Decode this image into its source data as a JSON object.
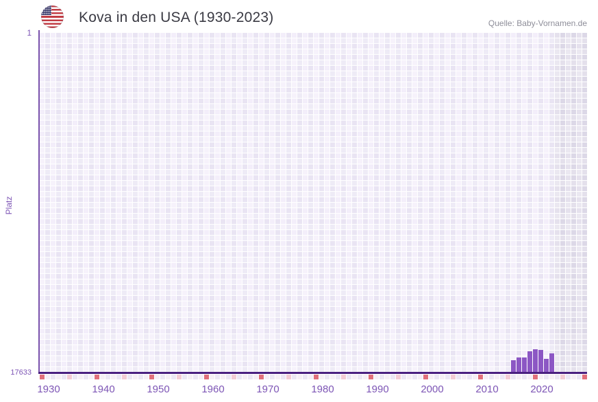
{
  "header": {
    "title": "Kova in den USA (1930-2023)",
    "source": "Quelle: Baby-Vornamen.de"
  },
  "chart_data": {
    "type": "bar",
    "name": "Kova",
    "title": "Kova in den USA (1930-2023)",
    "xlabel": "",
    "ylabel": "Platz",
    "y_axis": {
      "top_tick_label": "1",
      "bottom_tick_label": "17633",
      "min_rank": 1,
      "max_rank": 17633,
      "inverted": true
    },
    "x_axis": {
      "grid_start_year": 1929,
      "grid_end_year": 2028,
      "tick_years": [
        1930,
        1940,
        1950,
        1960,
        1970,
        1980,
        1990,
        2000,
        2010,
        2020
      ]
    },
    "bars": [
      {
        "year": 2015,
        "rank": 16990
      },
      {
        "year": 2016,
        "rank": 16850
      },
      {
        "year": 2017,
        "rank": 16850
      },
      {
        "year": 2018,
        "rank": 16530
      },
      {
        "year": 2019,
        "rank": 16430
      },
      {
        "year": 2020,
        "rank": 16460
      },
      {
        "year": 2021,
        "rank": 16920
      },
      {
        "year": 2022,
        "rank": 16640
      }
    ],
    "no_data_region": {
      "start_year": 2023,
      "end_year": 2028
    },
    "decade_marks": {
      "red_years": [
        1929,
        1939,
        1949,
        1959,
        1969,
        1979,
        1989,
        1999,
        2009,
        2019,
        2028
      ],
      "pink_years": [
        1934,
        1944,
        1954,
        1964,
        1974,
        1984,
        1994,
        2004,
        2014,
        2024
      ]
    },
    "legend": "none",
    "grid": true,
    "colors": {
      "bar": "#8c57c4",
      "axis_line": "#4a2080",
      "left_axis_line": "#7a52ac",
      "tick_label": "#7d55b5",
      "red_mark": "#e1707b",
      "pink_mark": "#f3ccd5",
      "title_text": "#3a3a43",
      "source_text": "#8e8e99"
    }
  }
}
